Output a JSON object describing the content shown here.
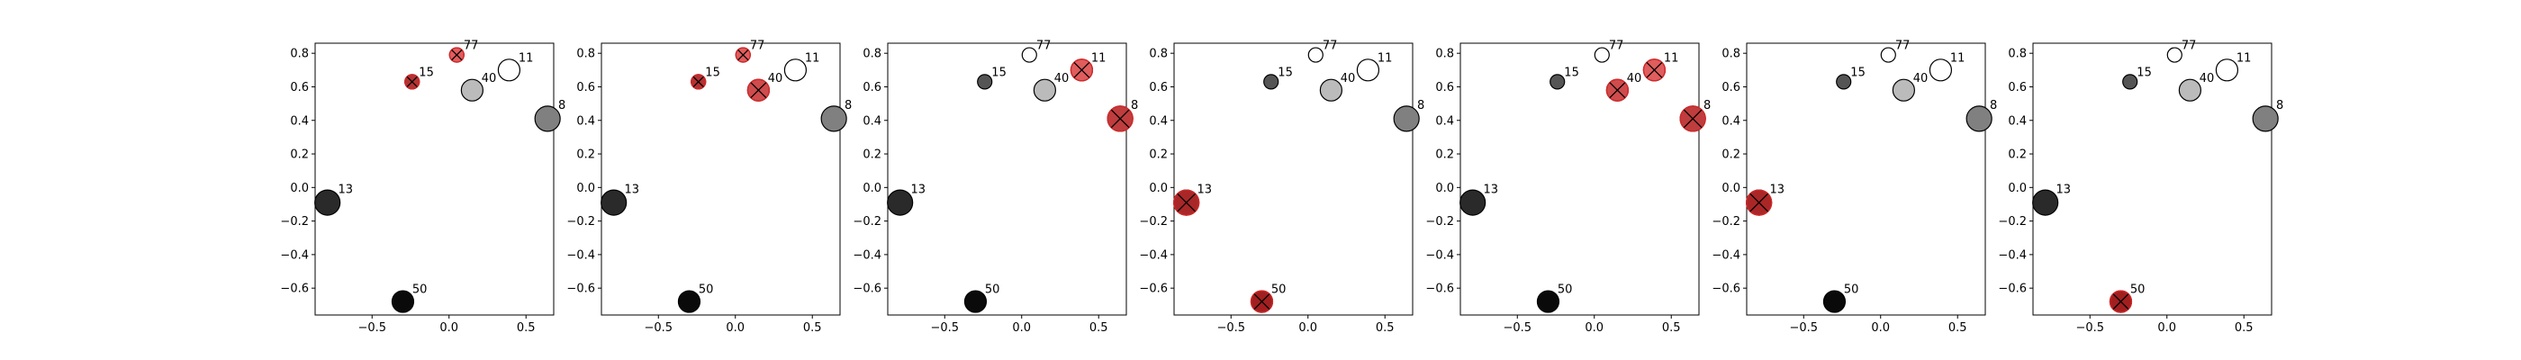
{
  "chart_data": {
    "type": "scatter",
    "layout": "7 panels in one row, identical point set, highlighted points differ per panel",
    "xlim": [
      -0.87,
      0.68
    ],
    "ylim": [
      -0.76,
      0.86
    ],
    "xticks": [
      -0.5,
      0.0,
      0.5
    ],
    "xtick_labels": [
      "−0.5",
      "0.0",
      "0.5"
    ],
    "yticks": [
      -0.6,
      -0.4,
      -0.2,
      0.0,
      0.2,
      0.4,
      0.6,
      0.8
    ],
    "ytick_labels": [
      "−0.6",
      "−0.4",
      "−0.2",
      "0.0",
      "0.2",
      "0.4",
      "0.6",
      "0.8"
    ],
    "grid": false,
    "title": "",
    "xlabel": "",
    "ylabel": "",
    "points": [
      {
        "label": "77",
        "x": 0.05,
        "y": 0.79,
        "fill": "#ffffff",
        "size": 8
      },
      {
        "label": "11",
        "x": 0.39,
        "y": 0.7,
        "fill": "#ffffff",
        "size": 12
      },
      {
        "label": "15",
        "x": -0.24,
        "y": 0.63,
        "fill": "#555555",
        "size": 8
      },
      {
        "label": "40",
        "x": 0.15,
        "y": 0.58,
        "fill": "#bbbbbb",
        "size": 12
      },
      {
        "label": "8",
        "x": 0.64,
        "y": 0.41,
        "fill": "#808080",
        "size": 14
      },
      {
        "label": "13",
        "x": -0.79,
        "y": -0.09,
        "fill": "#2a2a2a",
        "size": 14
      },
      {
        "label": "50",
        "x": -0.3,
        "y": -0.68,
        "fill": "#0a0a0a",
        "size": 12
      }
    ],
    "highlight_color": "#d62728",
    "highlight_marker": "x",
    "panels": [
      {
        "highlighted": [
          "77",
          "15"
        ]
      },
      {
        "highlighted": [
          "77",
          "15",
          "40"
        ]
      },
      {
        "highlighted": [
          "11",
          "8"
        ]
      },
      {
        "highlighted": [
          "13",
          "50"
        ]
      },
      {
        "highlighted": [
          "11",
          "40",
          "8"
        ]
      },
      {
        "highlighted": [
          "13"
        ]
      },
      {
        "highlighted": [
          "50"
        ]
      }
    ]
  }
}
